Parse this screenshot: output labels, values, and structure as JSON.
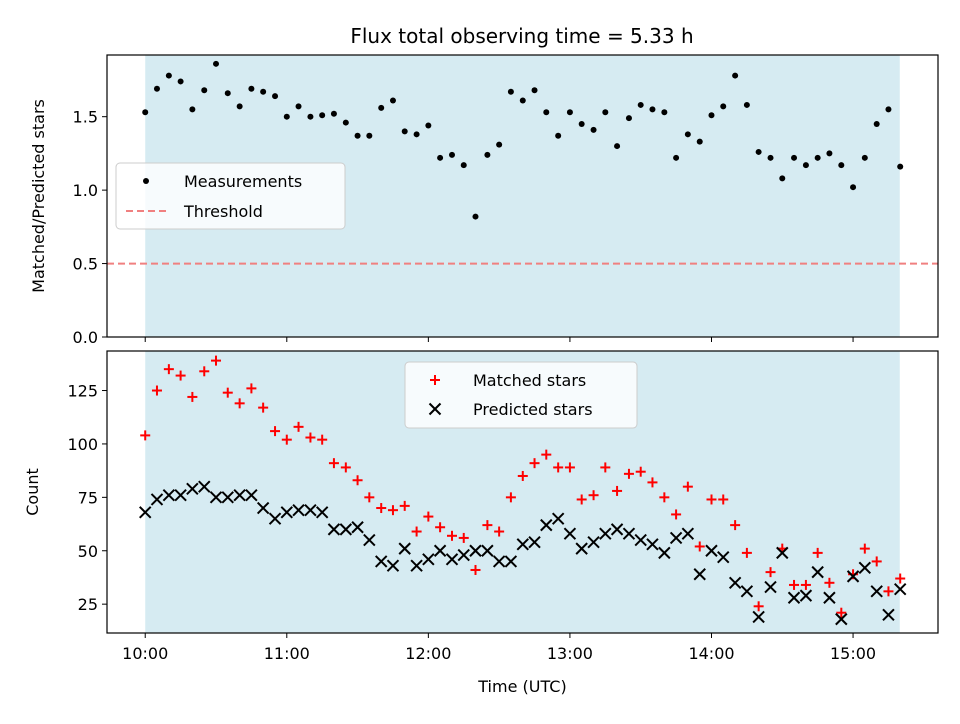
{
  "title": "Flux total observing time = 5.33 h",
  "colors": {
    "observing_band": "#add8e6",
    "measurement": "#000000",
    "threshold": "#f08080",
    "matched": "#ff0000",
    "predicted": "#000000"
  },
  "chart_data": [
    {
      "type": "scatter",
      "panel": "top",
      "ylabel": "Matched/Predicted stars",
      "ylim": [
        0,
        1.92
      ],
      "yticks": [
        0.0,
        0.5,
        1.0,
        1.5
      ],
      "ytick_labels": [
        "0.0",
        "0.5",
        "1.0",
        "1.5"
      ],
      "xlim_hours": [
        9.73,
        15.6
      ],
      "observing_window_hours": [
        10.0,
        15.33
      ],
      "legend": {
        "position": "center-left",
        "measurements_label": "Measurements",
        "threshold_label": "Threshold"
      },
      "threshold": 0.5,
      "series": [
        {
          "name": "Measurements",
          "x_hours": [
            10.0,
            10.083,
            10.167,
            10.25,
            10.333,
            10.417,
            10.5,
            10.583,
            10.667,
            10.75,
            10.833,
            10.917,
            11.0,
            11.083,
            11.167,
            11.25,
            11.333,
            11.417,
            11.5,
            11.583,
            11.667,
            11.75,
            11.833,
            11.917,
            12.0,
            12.083,
            12.167,
            12.25,
            12.333,
            12.417,
            12.5,
            12.583,
            12.667,
            12.75,
            12.833,
            12.917,
            13.0,
            13.083,
            13.167,
            13.25,
            13.333,
            13.417,
            13.5,
            13.583,
            13.667,
            13.75,
            13.833,
            13.917,
            14.0,
            14.083,
            14.167,
            14.25,
            14.333,
            14.417,
            14.5,
            14.583,
            14.667,
            14.75,
            14.833,
            14.917,
            15.0,
            15.083,
            15.167,
            15.25,
            15.333
          ],
          "y": [
            1.53,
            1.69,
            1.78,
            1.74,
            1.55,
            1.68,
            1.86,
            1.66,
            1.57,
            1.69,
            1.67,
            1.64,
            1.5,
            1.57,
            1.5,
            1.51,
            1.52,
            1.46,
            1.37,
            1.37,
            1.56,
            1.61,
            1.4,
            1.38,
            1.44,
            1.22,
            1.24,
            1.17,
            0.82,
            1.24,
            1.31,
            1.67,
            1.61,
            1.68,
            1.53,
            1.37,
            1.53,
            1.45,
            1.41,
            1.53,
            1.3,
            1.49,
            1.58,
            1.55,
            1.53,
            1.22,
            1.38,
            1.33,
            1.51,
            1.57,
            1.78,
            1.58,
            1.26,
            1.22,
            1.08,
            1.22,
            1.17,
            1.22,
            1.25,
            1.17,
            1.02,
            1.22,
            1.45,
            1.55,
            1.16
          ]
        }
      ]
    },
    {
      "type": "scatter",
      "panel": "bottom",
      "xlabel": "Time (UTC)",
      "ylabel": "Count",
      "ylim": [
        11.5,
        143.5
      ],
      "yticks": [
        25,
        50,
        75,
        100,
        125
      ],
      "ytick_labels": [
        "25",
        "50",
        "75",
        "100",
        "125"
      ],
      "xlim_hours": [
        9.73,
        15.6
      ],
      "xticks_hours": [
        10,
        11,
        12,
        13,
        14,
        15
      ],
      "xtick_labels": [
        "10:00",
        "11:00",
        "12:00",
        "13:00",
        "14:00",
        "15:00"
      ],
      "observing_window_hours": [
        10.0,
        15.33
      ],
      "legend": {
        "position": "top-center",
        "matched_label": "Matched stars",
        "predicted_label": "Predicted stars"
      },
      "series": [
        {
          "name": "Matched stars",
          "marker": "plus",
          "x_hours": [
            10.0,
            10.083,
            10.167,
            10.25,
            10.333,
            10.417,
            10.5,
            10.583,
            10.667,
            10.75,
            10.833,
            10.917,
            11.0,
            11.083,
            11.167,
            11.25,
            11.333,
            11.417,
            11.5,
            11.583,
            11.667,
            11.75,
            11.833,
            11.917,
            12.0,
            12.083,
            12.167,
            12.25,
            12.333,
            12.417,
            12.5,
            12.583,
            12.667,
            12.75,
            12.833,
            12.917,
            13.0,
            13.083,
            13.167,
            13.25,
            13.333,
            13.417,
            13.5,
            13.583,
            13.667,
            13.75,
            13.833,
            13.917,
            14.0,
            14.083,
            14.167,
            14.25,
            14.333,
            14.417,
            14.5,
            14.583,
            14.667,
            14.75,
            14.833,
            14.917,
            15.0,
            15.083,
            15.167,
            15.25,
            15.333
          ],
          "y": [
            104,
            125,
            135,
            132,
            122,
            134,
            139,
            124,
            119,
            126,
            117,
            106,
            102,
            108,
            103,
            102,
            91,
            89,
            83,
            75,
            70,
            69,
            71,
            59,
            66,
            61,
            57,
            56,
            41,
            62,
            59,
            75,
            85,
            91,
            95,
            89,
            89,
            74,
            76,
            89,
            78,
            86,
            87,
            82,
            75,
            67,
            80,
            52,
            74,
            74,
            62,
            49,
            24,
            40,
            51,
            34,
            34,
            49,
            35,
            21,
            39,
            51,
            45,
            31,
            37
          ]
        },
        {
          "name": "Predicted stars",
          "marker": "x",
          "x_hours": [
            10.0,
            10.083,
            10.167,
            10.25,
            10.333,
            10.417,
            10.5,
            10.583,
            10.667,
            10.75,
            10.833,
            10.917,
            11.0,
            11.083,
            11.167,
            11.25,
            11.333,
            11.417,
            11.5,
            11.583,
            11.667,
            11.75,
            11.833,
            11.917,
            12.0,
            12.083,
            12.167,
            12.25,
            12.333,
            12.417,
            12.5,
            12.583,
            12.667,
            12.75,
            12.833,
            12.917,
            13.0,
            13.083,
            13.167,
            13.25,
            13.333,
            13.417,
            13.5,
            13.583,
            13.667,
            13.75,
            13.833,
            13.917,
            14.0,
            14.083,
            14.167,
            14.25,
            14.333,
            14.417,
            14.5,
            14.583,
            14.667,
            14.75,
            14.833,
            14.917,
            15.0,
            15.083,
            15.167,
            15.25,
            15.333
          ],
          "y": [
            68,
            74,
            76,
            76,
            79,
            80,
            75,
            75,
            76,
            76,
            70,
            65,
            68,
            69,
            69,
            68,
            60,
            60,
            61,
            55,
            45,
            43,
            51,
            43,
            46,
            50,
            46,
            48,
            50,
            50,
            45,
            45,
            53,
            54,
            62,
            65,
            58,
            51,
            54,
            58,
            60,
            58,
            55,
            53,
            49,
            56,
            58,
            39,
            50,
            47,
            35,
            31,
            19,
            33,
            49,
            28,
            29,
            40,
            28,
            18,
            38,
            42,
            31,
            20,
            32
          ]
        }
      ]
    }
  ]
}
